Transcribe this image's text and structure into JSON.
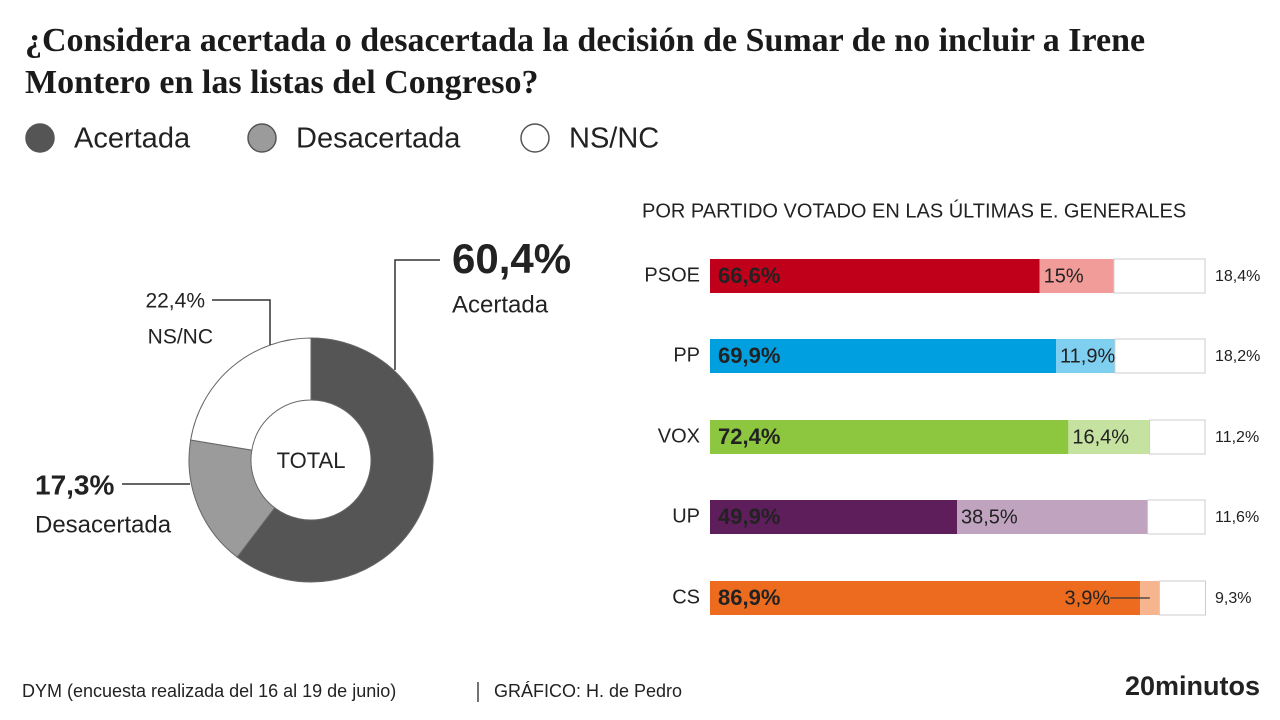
{
  "title": "¿Considera acertada o desacertada la decisión de Sumar de no incluir a Irene Montero en las listas del Congreso?",
  "chart_data": [
    {
      "type": "pie",
      "donut": true,
      "center_label": "TOTAL",
      "categories": [
        "Acertada",
        "Desacertada",
        "NS/NC"
      ],
      "values": [
        60.4,
        17.3,
        22.4
      ],
      "value_labels": [
        "60,4%",
        "17,3%",
        "22,4%"
      ],
      "colors": [
        "#555555",
        "#9b9b9b",
        "#ffffff"
      ]
    },
    {
      "type": "bar",
      "orientation": "horizontal",
      "stacked": true,
      "subtitle": "POR PARTIDO VOTADO EN LAS ÚLTIMAS E. GENERALES",
      "categories": [
        "PSOE",
        "PP",
        "VOX",
        "UP",
        "CS"
      ],
      "series": [
        {
          "name": "Acertada",
          "legend_color": "#555555",
          "colors": [
            "#c0001a",
            "#009fdf",
            "#8dc63f",
            "#5e1e5b",
            "#ec6b1e"
          ],
          "values": [
            66.6,
            69.9,
            72.4,
            49.9,
            86.9
          ],
          "value_labels": [
            "66,6%",
            "69,9%",
            "72,4%",
            "49,9%",
            "86,9%"
          ]
        },
        {
          "name": "Desacertada",
          "legend_color": "#9b9b9b",
          "colors": [
            "#f19c98",
            "#7fcff0",
            "#c6e2a0",
            "#bfa3bf",
            "#f7b58f"
          ],
          "values": [
            15,
            11.9,
            16.4,
            38.5,
            3.9
          ],
          "value_labels": [
            "15%",
            "11,9%",
            "16,4%",
            "38,5%",
            "3,9%"
          ]
        },
        {
          "name": "NS/NC",
          "legend_color": "#ffffff",
          "colors": [
            "#ffffff",
            "#ffffff",
            "#ffffff",
            "#ffffff",
            "#ffffff"
          ],
          "values": [
            18.4,
            18.2,
            11.2,
            11.6,
            9.3
          ],
          "value_labels": [
            "18,4%",
            "18,2%",
            "11,2%",
            "11,6%",
            "9,3%"
          ]
        }
      ]
    }
  ],
  "source": "DYM (encuesta realizada del 16 al 19 de junio)",
  "credit": "GRÁFICO: H. de Pedro",
  "brand": "20minutos"
}
